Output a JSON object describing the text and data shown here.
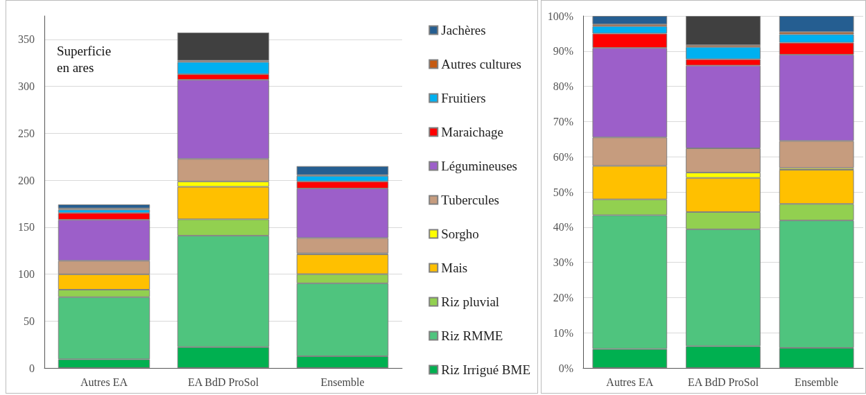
{
  "chart_data": [
    {
      "type": "bar",
      "stacked": true,
      "ylabel": "Superficie en ares",
      "categories": [
        "Autres EA",
        "EA BdD ProSol",
        "Ensemble"
      ],
      "ylim": [
        0,
        375
      ],
      "yticks": [
        0,
        50,
        100,
        150,
        200,
        250,
        300,
        350
      ],
      "grid": "y",
      "legend": "right",
      "series": [
        {
          "name": "Riz Irrigué BME",
          "color": "#00b050",
          "values": [
            9.3,
            22.3,
            12.5
          ]
        },
        {
          "name": "Riz RMME",
          "color": "#4fc47e",
          "values": [
            66.2,
            118.6,
            77.7
          ]
        },
        {
          "name": "Riz pluvial",
          "color": "#92d050",
          "values": [
            7.9,
            17.5,
            9.8
          ]
        },
        {
          "name": "Mais",
          "color": "#ffc000",
          "values": [
            16.4,
            34.6,
            21
          ]
        },
        {
          "name": "Sorgho",
          "color": "#ffff00",
          "values": [
            0,
            5.7,
            1.1
          ]
        },
        {
          "name": "Tubercules",
          "color": "#c69c7e",
          "values": [
            14.4,
            24,
            16.4
          ]
        },
        {
          "name": "Légumineuses",
          "color": "#9c5fc9",
          "values": [
            43.6,
            84.2,
            52.6
          ]
        },
        {
          "name": "Maraichage",
          "color": "#ff0000",
          "values": [
            7.4,
            6,
            7.6
          ]
        },
        {
          "name": "Fruitiers",
          "color": "#00b0f0",
          "values": [
            3.5,
            13.1,
            6
          ]
        },
        {
          "name": "Autres cultures",
          "color": "#c55a11",
          "values": [
            1.3,
            1.3,
            0.8
          ]
        },
        {
          "name": "Jachères",
          "color": "#255e91",
          "values": [
            4.2,
            0,
            9.5
          ]
        },
        {
          "color": "#404040",
          "values": [
            0,
            30,
            0
          ]
        }
      ]
    },
    {
      "type": "bar",
      "stacked": true,
      "categories": [
        "Autres EA",
        "EA BdD ProSol",
        "Ensemble"
      ],
      "ylim": [
        0,
        100
      ],
      "yticks": [
        {
          "value": 0,
          "label": "0%"
        },
        {
          "value": 10,
          "label": "10%"
        },
        {
          "value": 20,
          "label": "20%"
        },
        {
          "value": 30,
          "label": "30%"
        },
        {
          "value": 40,
          "label": "40%"
        },
        {
          "value": 50,
          "label": "50%"
        },
        {
          "value": 60,
          "label": "60%"
        },
        {
          "value": 70,
          "label": "70%"
        },
        {
          "value": 80,
          "label": "80%"
        },
        {
          "value": 90,
          "label": "90%"
        },
        {
          "value": 100,
          "label": "100%"
        }
      ],
      "grid": "y",
      "series": [
        {
          "color": "#00b050",
          "values": [
            5.4,
            6.2,
            5.7
          ]
        },
        {
          "color": "#4fc47e",
          "values": [
            38,
            33.2,
            36.2
          ]
        },
        {
          "color": "#92d050",
          "values": [
            4.5,
            4.9,
            4.7
          ]
        },
        {
          "color": "#ffc000",
          "values": [
            9.5,
            9.7,
            9.7
          ]
        },
        {
          "color": "#ffff00",
          "values": [
            0,
            1.5,
            0.5
          ]
        },
        {
          "color": "#c69c7e",
          "values": [
            8.1,
            6.9,
            7.7
          ]
        },
        {
          "color": "#9c5fc9",
          "values": [
            25.4,
            23.5,
            24.5
          ]
        },
        {
          "color": "#ff0000",
          "values": [
            4.1,
            1.8,
            3.4
          ]
        },
        {
          "color": "#00b0f0",
          "values": [
            2.1,
            3.5,
            2.4
          ]
        },
        {
          "color": "#c55a11",
          "values": [
            0.5,
            0.5,
            0.6
          ]
        },
        {
          "color": "#255e91",
          "values": [
            2.4,
            0,
            4.6
          ]
        },
        {
          "color": "#404040",
          "values": [
            0,
            8.3,
            0
          ]
        }
      ]
    }
  ]
}
